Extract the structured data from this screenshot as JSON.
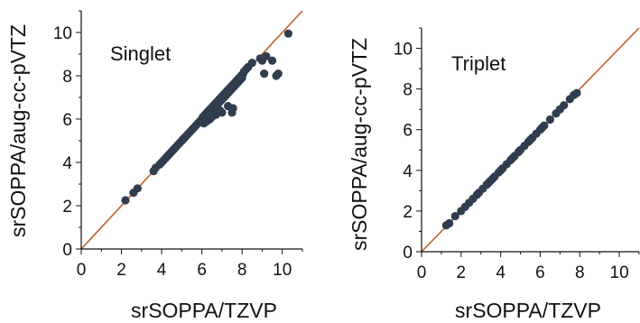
{
  "chart_data": [
    {
      "type": "scatter",
      "annotation": "Singlet",
      "xlabel": "srSOPPA/TZVP",
      "ylabel": "srSOPPA/aug-cc-pVTZ",
      "xlim": [
        0,
        11
      ],
      "ylim": [
        0,
        11
      ],
      "xticks": [
        "0",
        "2",
        "4",
        "6",
        "8",
        "10"
      ],
      "yticks": [
        "0",
        "2",
        "4",
        "6",
        "8",
        "10"
      ],
      "reference_line": "y = x",
      "grid": false,
      "colors": {
        "points": "#2f3d4f",
        "line": "#c0602a",
        "axis": "#111111"
      },
      "series": [
        {
          "x": [
            2.2,
            2.6,
            2.8,
            3.6,
            3.7,
            3.9,
            4.0,
            4.1,
            4.2,
            4.3,
            4.4,
            4.5,
            4.6,
            4.7,
            4.8,
            4.9,
            5.0,
            5.05,
            5.1,
            5.2,
            5.3,
            5.4,
            5.5,
            5.6,
            5.7,
            5.8,
            5.9,
            6.0,
            6.05,
            6.1,
            6.15,
            6.2,
            6.25,
            6.3,
            6.35,
            6.4,
            6.45,
            6.5,
            6.55,
            6.6,
            6.65,
            6.7,
            6.75,
            6.8,
            6.85,
            6.9,
            6.95,
            7.0,
            7.05,
            7.1,
            7.15,
            7.2,
            7.25,
            7.3,
            7.35,
            7.4,
            7.45,
            7.5,
            7.55,
            7.6,
            7.65,
            7.7,
            7.75,
            7.8,
            7.85,
            7.9,
            7.95,
            8.0,
            8.05,
            8.1,
            8.2,
            8.3,
            8.5,
            8.9,
            9.0,
            9.2,
            9.5,
            9.8,
            10.3,
            6.1,
            6.25,
            6.4,
            6.5,
            6.7,
            6.9,
            7.0,
            7.3,
            7.5,
            7.55,
            9.1,
            9.7
          ],
          "y": [
            2.25,
            2.6,
            2.8,
            3.6,
            3.75,
            3.9,
            4.0,
            4.1,
            4.2,
            4.3,
            4.4,
            4.5,
            4.6,
            4.7,
            4.8,
            4.9,
            5.0,
            5.05,
            5.1,
            5.2,
            5.3,
            5.4,
            5.5,
            5.6,
            5.7,
            5.8,
            5.9,
            6.0,
            6.1,
            6.0,
            6.2,
            6.1,
            6.3,
            6.2,
            6.4,
            6.3,
            6.5,
            6.4,
            6.6,
            6.5,
            6.7,
            6.6,
            6.8,
            6.7,
            6.9,
            6.8,
            7.0,
            6.9,
            7.1,
            7.0,
            7.2,
            7.1,
            7.3,
            7.2,
            7.4,
            7.3,
            7.5,
            7.4,
            7.6,
            7.5,
            7.7,
            7.6,
            7.8,
            7.7,
            7.9,
            7.8,
            8.0,
            7.9,
            8.1,
            8.2,
            8.3,
            8.4,
            8.6,
            8.8,
            8.7,
            8.9,
            8.7,
            8.1,
            9.95,
            5.8,
            5.9,
            6.0,
            6.1,
            6.2,
            6.4,
            6.3,
            6.6,
            6.3,
            6.5,
            8.1,
            8.0
          ]
        }
      ]
    },
    {
      "type": "scatter",
      "annotation": "Triplet",
      "xlabel": "srSOPPA/TZVP",
      "ylabel": "srSOPPA/aug-cc-pVTZ",
      "xlim": [
        0,
        11
      ],
      "ylim": [
        0,
        11
      ],
      "xticks": [
        "0",
        "2",
        "4",
        "6",
        "8",
        "10"
      ],
      "yticks": [
        "0",
        "2",
        "4",
        "6",
        "8",
        "10"
      ],
      "reference_line": "y = x",
      "grid": false,
      "colors": {
        "points": "#2f3d4f",
        "line": "#c0602a",
        "axis": "#111111"
      },
      "series": [
        {
          "x": [
            1.25,
            1.4,
            1.7,
            2.0,
            2.2,
            2.4,
            2.6,
            2.8,
            2.9,
            3.1,
            3.3,
            3.4,
            3.5,
            3.6,
            3.7,
            3.9,
            4.0,
            4.1,
            4.3,
            4.5,
            4.6,
            4.7,
            4.9,
            5.0,
            5.2,
            5.4,
            5.5,
            5.6,
            5.8,
            6.0,
            6.1,
            6.2,
            6.5,
            6.8,
            7.0,
            7.2,
            7.5,
            7.7,
            7.85
          ],
          "y": [
            1.3,
            1.4,
            1.75,
            2.0,
            2.2,
            2.4,
            2.6,
            2.8,
            2.9,
            3.1,
            3.3,
            3.4,
            3.5,
            3.6,
            3.7,
            3.9,
            4.0,
            4.1,
            4.3,
            4.5,
            4.6,
            4.7,
            4.9,
            5.0,
            5.2,
            5.4,
            5.5,
            5.6,
            5.8,
            6.0,
            6.1,
            6.2,
            6.5,
            6.8,
            7.0,
            7.2,
            7.5,
            7.7,
            7.8
          ]
        }
      ]
    }
  ]
}
